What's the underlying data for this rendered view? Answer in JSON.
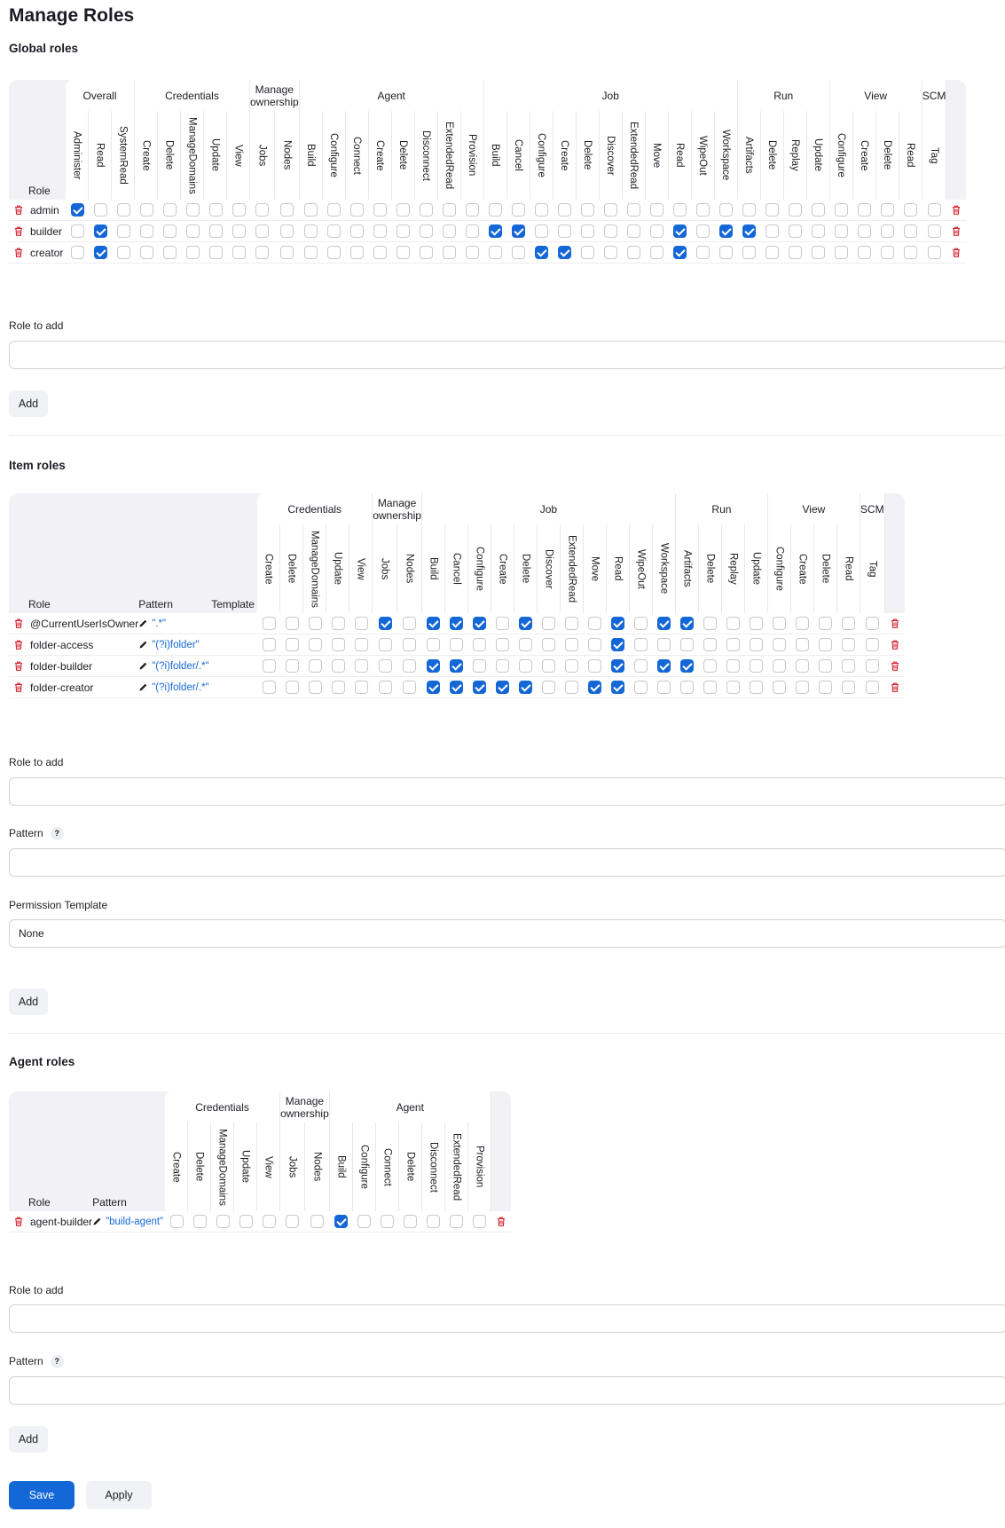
{
  "page": {
    "title": "Manage Roles"
  },
  "global": {
    "title": "Global roles",
    "role_header": "Role",
    "groups": [
      {
        "label": "Overall",
        "perms": [
          "Administer",
          "Read",
          "SystemRead"
        ]
      },
      {
        "label": "Credentials",
        "perms": [
          "Create",
          "Delete",
          "ManageDomains",
          "Update",
          "View"
        ]
      },
      {
        "label": "Manage ownership",
        "perms": [
          "Jobs",
          "Nodes"
        ]
      },
      {
        "label": "Agent",
        "perms": [
          "Build",
          "Configure",
          "Connect",
          "Create",
          "Delete",
          "Disconnect",
          "ExtendedRead",
          "Provision"
        ]
      },
      {
        "label": "Job",
        "perms": [
          "Build",
          "Cancel",
          "Configure",
          "Create",
          "Delete",
          "Discover",
          "ExtendedRead",
          "Move",
          "Read",
          "WipeOut",
          "Workspace"
        ]
      },
      {
        "label": "Run",
        "perms": [
          "Artifacts",
          "Delete",
          "Replay",
          "Update"
        ]
      },
      {
        "label": "View",
        "perms": [
          "Configure",
          "Create",
          "Delete",
          "Read"
        ]
      },
      {
        "label": "SCM",
        "perms": [
          "Tag"
        ]
      }
    ],
    "rows": [
      {
        "name": "admin",
        "checked": [
          0
        ]
      },
      {
        "name": "builder",
        "checked": [
          1,
          18,
          19,
          26,
          28,
          29
        ]
      },
      {
        "name": "creator",
        "checked": [
          1,
          20,
          21,
          26
        ]
      }
    ],
    "role_to_add_label": "Role to add",
    "add_label": "Add"
  },
  "item": {
    "title": "Item roles",
    "role_header": "Role",
    "pattern_header": "Pattern",
    "template_header": "Template",
    "groups": [
      {
        "label": "Credentials",
        "perms": [
          "Create",
          "Delete",
          "ManageDomains",
          "Update",
          "View"
        ]
      },
      {
        "label": "Manage ownership",
        "perms": [
          "Jobs",
          "Nodes"
        ]
      },
      {
        "label": "Job",
        "perms": [
          "Build",
          "Cancel",
          "Configure",
          "Create",
          "Delete",
          "Discover",
          "ExtendedRead",
          "Move",
          "Read",
          "WipeOut",
          "Workspace"
        ]
      },
      {
        "label": "Run",
        "perms": [
          "Artifacts",
          "Delete",
          "Replay",
          "Update"
        ]
      },
      {
        "label": "View",
        "perms": [
          "Configure",
          "Create",
          "Delete",
          "Read"
        ]
      },
      {
        "label": "SCM",
        "perms": [
          "Tag"
        ]
      }
    ],
    "rows": [
      {
        "name": "@CurrentUserIsOwner",
        "pattern": "\".*\"",
        "checked": [
          5,
          7,
          8,
          9,
          11,
          15,
          17,
          18
        ]
      },
      {
        "name": "folder-access",
        "pattern": "\"(?i)folder\"",
        "checked": [
          15
        ]
      },
      {
        "name": "folder-builder",
        "pattern": "\"(?i)folder/.*\"",
        "checked": [
          7,
          8,
          15,
          17,
          18
        ]
      },
      {
        "name": "folder-creator",
        "pattern": "\"(?i)folder/.*\"",
        "checked": [
          7,
          8,
          9,
          10,
          11,
          14,
          15
        ]
      }
    ],
    "role_to_add_label": "Role to add",
    "pattern_label": "Pattern",
    "help_mark": "?",
    "template_label": "Permission Template",
    "template_value": "None",
    "add_label": "Add"
  },
  "agent": {
    "title": "Agent roles",
    "role_header": "Role",
    "pattern_header": "Pattern",
    "groups": [
      {
        "label": "Credentials",
        "perms": [
          "Create",
          "Delete",
          "ManageDomains",
          "Update",
          "View"
        ]
      },
      {
        "label": "Manage ownership",
        "perms": [
          "Jobs",
          "Nodes"
        ]
      },
      {
        "label": "Agent",
        "perms": [
          "Build",
          "Configure",
          "Connect",
          "Delete",
          "Disconnect",
          "ExtendedRead",
          "Provision"
        ]
      }
    ],
    "rows": [
      {
        "name": "agent-builder",
        "pattern": "\"build-agent\"",
        "checked": [
          7
        ]
      }
    ],
    "role_to_add_label": "Role to add",
    "pattern_label": "Pattern",
    "help_mark": "?",
    "add_label": "Add"
  },
  "footer": {
    "save_label": "Save",
    "apply_label": "Apply"
  },
  "colors": {
    "accent": "#1467d6",
    "danger": "#d6202f"
  }
}
